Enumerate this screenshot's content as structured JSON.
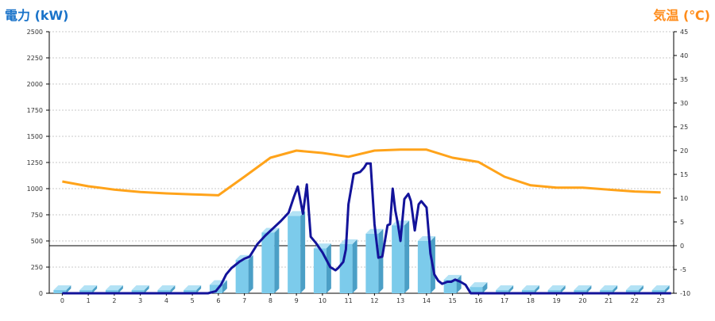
{
  "colors": {
    "power_title": "#1a73c9",
    "temp_title": "#ff8c1a",
    "bar_front": "#7ccbeb",
    "bar_side": "#4b9fc6",
    "bar_top": "#b3e2f5",
    "power_line": "#13139a",
    "temp_line": "#ffa31a",
    "grid": "#c8c8c8"
  },
  "chart_data": {
    "type": "bar",
    "left_axis_title": "電力 (kW)",
    "right_axis_title": "気温 (℃)",
    "categories": [
      "0",
      "1",
      "2",
      "3",
      "4",
      "5",
      "6",
      "7",
      "8",
      "9",
      "10",
      "11",
      "12",
      "13",
      "14",
      "15",
      "16",
      "17",
      "18",
      "19",
      "20",
      "21",
      "22",
      "23"
    ],
    "ylim": [
      0,
      2500
    ],
    "y_ticks": [
      0,
      250,
      500,
      750,
      1000,
      1250,
      1500,
      1750,
      2000,
      2250,
      2500
    ],
    "y2lim": [
      -10,
      45
    ],
    "y2_ticks": [
      -10,
      -5,
      0,
      5,
      10,
      15,
      20,
      25,
      30,
      35,
      40,
      45
    ],
    "grid": true,
    "series": [
      {
        "kind": "bar",
        "values": [
          0,
          0,
          0,
          0,
          0,
          0,
          80,
          320,
          580,
          740,
          430,
          470,
          570,
          650,
          500,
          130,
          60,
          0,
          0,
          0,
          0,
          0,
          0,
          0
        ]
      },
      {
        "kind": "line",
        "axis": "left",
        "x": [
          0,
          1,
          2,
          3,
          4,
          5,
          5.6,
          5.9,
          6.1,
          6.3,
          6.5,
          6.8,
          7.0,
          7.2,
          7.5,
          7.8,
          8.1,
          8.4,
          8.7,
          8.9,
          9.05,
          9.25,
          9.4,
          9.55,
          9.75,
          10.0,
          10.3,
          10.5,
          10.6,
          10.8,
          10.9,
          11.0,
          11.2,
          11.45,
          11.6,
          11.7,
          11.85,
          12.0,
          12.15,
          12.3,
          12.5,
          12.6,
          12.7,
          12.8,
          12.9,
          13.0,
          13.15,
          13.3,
          13.4,
          13.55,
          13.7,
          13.8,
          13.9,
          14.0,
          14.15,
          14.3,
          14.45,
          14.6,
          14.8,
          14.95,
          15.1,
          15.3,
          15.5,
          15.7,
          15.9,
          16.1,
          16.5,
          17,
          18,
          19,
          20,
          21,
          22,
          23,
          23.4
        ],
        "values": [
          0,
          0,
          0,
          0,
          0,
          0,
          0,
          20,
          80,
          180,
          240,
          300,
          330,
          350,
          470,
          550,
          620,
          690,
          770,
          920,
          1020,
          760,
          1040,
          540,
          480,
          390,
          250,
          220,
          240,
          300,
          420,
          850,
          1140,
          1160,
          1200,
          1240,
          1240,
          660,
          340,
          350,
          650,
          660,
          1000,
          790,
          660,
          500,
          900,
          950,
          880,
          600,
          850,
          880,
          850,
          820,
          380,
          180,
          120,
          90,
          110,
          110,
          130,
          110,
          80,
          0,
          0,
          0,
          0,
          0,
          0,
          0,
          0,
          0,
          0,
          0,
          0
        ]
      },
      {
        "kind": "line",
        "axis": "right",
        "x": [
          0,
          1,
          2,
          3,
          4,
          5,
          6,
          7,
          8,
          9,
          10,
          11,
          12,
          13,
          14,
          15,
          16,
          17,
          18,
          19,
          20,
          21,
          22,
          23
        ],
        "values": [
          13.5,
          12.5,
          11.8,
          11.3,
          11.0,
          10.8,
          10.6,
          14.5,
          18.5,
          20.0,
          19.5,
          18.7,
          20.0,
          20.2,
          20.2,
          18.5,
          17.6,
          14.5,
          12.7,
          12.2,
          12.2,
          11.8,
          11.4,
          11.2
        ]
      }
    ]
  }
}
